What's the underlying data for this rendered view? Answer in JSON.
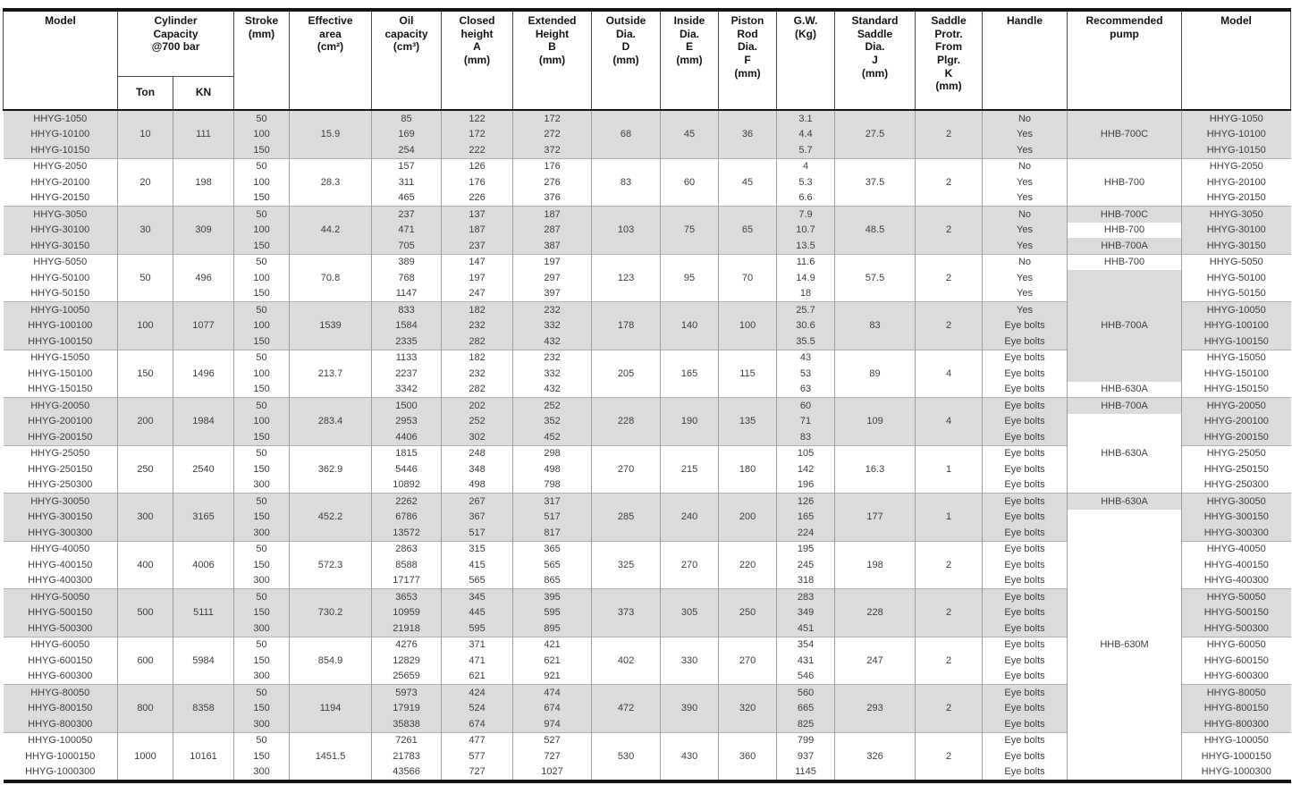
{
  "table": {
    "header": {
      "model": "Model",
      "capacity": "Cylinder\nCapacity\n@700 bar",
      "ton": "Ton",
      "kn": "KN",
      "stroke": "Stroke\n(mm)",
      "area": "Effective\narea\n(cm²)",
      "oil": "Oil\ncapacity\n(cm³)",
      "closed": "Closed\nheight\nA\n(mm)",
      "extended": "Extended\nHeight\nB\n(mm)",
      "outside": "Outside\nDia.\nD\n(mm)",
      "inside": "Inside\nDia.\nE\n(mm)",
      "rod": "Piston\nRod\nDia.\nF\n(mm)",
      "gw": "G.W.\n(Kg)",
      "saddle": "Standard\nSaddle\nDia.\nJ\n(mm)",
      "protr": "Saddle\nProtr.\nFrom\nPlgr.\nK\n(mm)",
      "handle": "Handle",
      "pump": "Recommended\npump",
      "model2": "Model"
    },
    "colors": {
      "shade": "#dbdbdb",
      "white": "#ffffff"
    },
    "groups": [
      {
        "ton": "10",
        "kn": "111",
        "area": "15.9",
        "outside": "68",
        "inside": "45",
        "rod": "36",
        "saddle": "27.5",
        "protr": "2",
        "bg": "shade",
        "rows": [
          {
            "model": "HHYG-1050",
            "stroke": "50",
            "oil": "85",
            "closed": "122",
            "extended": "172",
            "gw": "3.1",
            "handle": "No"
          },
          {
            "model": "HHYG-10100",
            "stroke": "100",
            "oil": "169",
            "closed": "172",
            "extended": "272",
            "gw": "4.4",
            "handle": "Yes"
          },
          {
            "model": "HHYG-10150",
            "stroke": "150",
            "oil": "254",
            "closed": "222",
            "extended": "372",
            "gw": "5.7",
            "handle": "Yes"
          }
        ]
      },
      {
        "ton": "20",
        "kn": "198",
        "area": "28.3",
        "outside": "83",
        "inside": "60",
        "rod": "45",
        "saddle": "37.5",
        "protr": "2",
        "bg": "white",
        "rows": [
          {
            "model": "HHYG-2050",
            "stroke": "50",
            "oil": "157",
            "closed": "126",
            "extended": "176",
            "gw": "4",
            "handle": "No"
          },
          {
            "model": "HHYG-20100",
            "stroke": "100",
            "oil": "311",
            "closed": "176",
            "extended": "276",
            "gw": "5.3",
            "handle": "Yes"
          },
          {
            "model": "HHYG-20150",
            "stroke": "150",
            "oil": "465",
            "closed": "226",
            "extended": "376",
            "gw": "6.6",
            "handle": "Yes"
          }
        ]
      },
      {
        "ton": "30",
        "kn": "309",
        "area": "44.2",
        "outside": "103",
        "inside": "75",
        "rod": "65",
        "saddle": "48.5",
        "protr": "2",
        "bg": "shade",
        "rows": [
          {
            "model": "HHYG-3050",
            "stroke": "50",
            "oil": "237",
            "closed": "137",
            "extended": "187",
            "gw": "7.9",
            "handle": "No"
          },
          {
            "model": "HHYG-30100",
            "stroke": "100",
            "oil": "471",
            "closed": "187",
            "extended": "287",
            "gw": "10.7",
            "handle": "Yes"
          },
          {
            "model": "HHYG-30150",
            "stroke": "150",
            "oil": "705",
            "closed": "237",
            "extended": "387",
            "gw": "13.5",
            "handle": "Yes"
          }
        ]
      },
      {
        "ton": "50",
        "kn": "496",
        "area": "70.8",
        "outside": "123",
        "inside": "95",
        "rod": "70",
        "saddle": "57.5",
        "protr": "2",
        "bg": "white",
        "rows": [
          {
            "model": "HHYG-5050",
            "stroke": "50",
            "oil": "389",
            "closed": "147",
            "extended": "197",
            "gw": "11.6",
            "handle": "No"
          },
          {
            "model": "HHYG-50100",
            "stroke": "100",
            "oil": "768",
            "closed": "197",
            "extended": "297",
            "gw": "14.9",
            "handle": "Yes"
          },
          {
            "model": "HHYG-50150",
            "stroke": "150",
            "oil": "1147",
            "closed": "247",
            "extended": "397",
            "gw": "18",
            "handle": "Yes"
          }
        ]
      },
      {
        "ton": "100",
        "kn": "1077",
        "area": "1539",
        "outside": "178",
        "inside": "140",
        "rod": "100",
        "saddle": "83",
        "protr": "2",
        "bg": "shade",
        "rows": [
          {
            "model": "HHYG-10050",
            "stroke": "50",
            "oil": "833",
            "closed": "182",
            "extended": "232",
            "gw": "25.7",
            "handle": "Yes"
          },
          {
            "model": "HHYG-100100",
            "stroke": "100",
            "oil": "1584",
            "closed": "232",
            "extended": "332",
            "gw": "30.6",
            "handle": "Eye bolts"
          },
          {
            "model": "HHYG-100150",
            "stroke": "150",
            "oil": "2335",
            "closed": "282",
            "extended": "432",
            "gw": "35.5",
            "handle": "Eye bolts"
          }
        ]
      },
      {
        "ton": "150",
        "kn": "1496",
        "area": "213.7",
        "outside": "205",
        "inside": "165",
        "rod": "115",
        "saddle": "89",
        "protr": "4",
        "bg": "white",
        "rows": [
          {
            "model": "HHYG-15050",
            "stroke": "50",
            "oil": "1133",
            "closed": "182",
            "extended": "232",
            "gw": "43",
            "handle": "Eye bolts"
          },
          {
            "model": "HHYG-150100",
            "stroke": "100",
            "oil": "2237",
            "closed": "232",
            "extended": "332",
            "gw": "53",
            "handle": "Eye bolts"
          },
          {
            "model": "HHYG-150150",
            "stroke": "150",
            "oil": "3342",
            "closed": "282",
            "extended": "432",
            "gw": "63",
            "handle": "Eye bolts"
          }
        ]
      },
      {
        "ton": "200",
        "kn": "1984",
        "area": "283.4",
        "outside": "228",
        "inside": "190",
        "rod": "135",
        "saddle": "109",
        "protr": "4",
        "bg": "shade",
        "rows": [
          {
            "model": "HHYG-20050",
            "stroke": "50",
            "oil": "1500",
            "closed": "202",
            "extended": "252",
            "gw": "60",
            "handle": "Eye bolts"
          },
          {
            "model": "HHYG-200100",
            "stroke": "100",
            "oil": "2953",
            "closed": "252",
            "extended": "352",
            "gw": "71",
            "handle": "Eye bolts"
          },
          {
            "model": "HHYG-200150",
            "stroke": "150",
            "oil": "4406",
            "closed": "302",
            "extended": "452",
            "gw": "83",
            "handle": "Eye bolts"
          }
        ]
      },
      {
        "ton": "250",
        "kn": "2540",
        "area": "362.9",
        "outside": "270",
        "inside": "215",
        "rod": "180",
        "saddle": "16.3",
        "protr": "1",
        "bg": "white",
        "rows": [
          {
            "model": "HHYG-25050",
            "stroke": "50",
            "oil": "1815",
            "closed": "248",
            "extended": "298",
            "gw": "105",
            "handle": "Eye bolts"
          },
          {
            "model": "HHYG-250150",
            "stroke": "150",
            "oil": "5446",
            "closed": "348",
            "extended": "498",
            "gw": "142",
            "handle": "Eye bolts"
          },
          {
            "model": "HHYG-250300",
            "stroke": "300",
            "oil": "10892",
            "closed": "498",
            "extended": "798",
            "gw": "196",
            "handle": "Eye bolts"
          }
        ]
      },
      {
        "ton": "300",
        "kn": "3165",
        "area": "452.2",
        "outside": "285",
        "inside": "240",
        "rod": "200",
        "saddle": "177",
        "protr": "1",
        "bg": "shade",
        "rows": [
          {
            "model": "HHYG-30050",
            "stroke": "50",
            "oil": "2262",
            "closed": "267",
            "extended": "317",
            "gw": "126",
            "handle": "Eye bolts"
          },
          {
            "model": "HHYG-300150",
            "stroke": "150",
            "oil": "6786",
            "closed": "367",
            "extended": "517",
            "gw": "165",
            "handle": "Eye bolts"
          },
          {
            "model": "HHYG-300300",
            "stroke": "300",
            "oil": "13572",
            "closed": "517",
            "extended": "817",
            "gw": "224",
            "handle": "Eye bolts"
          }
        ]
      },
      {
        "ton": "400",
        "kn": "4006",
        "area": "572.3",
        "outside": "325",
        "inside": "270",
        "rod": "220",
        "saddle": "198",
        "protr": "2",
        "bg": "white",
        "rows": [
          {
            "model": "HHYG-40050",
            "stroke": "50",
            "oil": "2863",
            "closed": "315",
            "extended": "365",
            "gw": "195",
            "handle": "Eye bolts"
          },
          {
            "model": "HHYG-400150",
            "stroke": "150",
            "oil": "8588",
            "closed": "415",
            "extended": "565",
            "gw": "245",
            "handle": "Eye bolts"
          },
          {
            "model": "HHYG-400300",
            "stroke": "300",
            "oil": "17177",
            "closed": "565",
            "extended": "865",
            "gw": "318",
            "handle": "Eye bolts"
          }
        ]
      },
      {
        "ton": "500",
        "kn": "5111",
        "area": "730.2",
        "outside": "373",
        "inside": "305",
        "rod": "250",
        "saddle": "228",
        "protr": "2",
        "bg": "shade",
        "rows": [
          {
            "model": "HHYG-50050",
            "stroke": "50",
            "oil": "3653",
            "closed": "345",
            "extended": "395",
            "gw": "283",
            "handle": "Eye bolts"
          },
          {
            "model": "HHYG-500150",
            "stroke": "150",
            "oil": "10959",
            "closed": "445",
            "extended": "595",
            "gw": "349",
            "handle": "Eye bolts"
          },
          {
            "model": "HHYG-500300",
            "stroke": "300",
            "oil": "21918",
            "closed": "595",
            "extended": "895",
            "gw": "451",
            "handle": "Eye bolts"
          }
        ]
      },
      {
        "ton": "600",
        "kn": "5984",
        "area": "854.9",
        "outside": "402",
        "inside": "330",
        "rod": "270",
        "saddle": "247",
        "protr": "2",
        "bg": "white",
        "rows": [
          {
            "model": "HHYG-60050",
            "stroke": "50",
            "oil": "4276",
            "closed": "371",
            "extended": "421",
            "gw": "354",
            "handle": "Eye bolts"
          },
          {
            "model": "HHYG-600150",
            "stroke": "150",
            "oil": "12829",
            "closed": "471",
            "extended": "621",
            "gw": "431",
            "handle": "Eye bolts"
          },
          {
            "model": "HHYG-600300",
            "stroke": "300",
            "oil": "25659",
            "closed": "621",
            "extended": "921",
            "gw": "546",
            "handle": "Eye bolts"
          }
        ]
      },
      {
        "ton": "800",
        "kn": "8358",
        "area": "1194",
        "outside": "472",
        "inside": "390",
        "rod": "320",
        "saddle": "293",
        "protr": "2",
        "bg": "shade",
        "rows": [
          {
            "model": "HHYG-80050",
            "stroke": "50",
            "oil": "5973",
            "closed": "424",
            "extended": "474",
            "gw": "560",
            "handle": "Eye bolts"
          },
          {
            "model": "HHYG-800150",
            "stroke": "150",
            "oil": "17919",
            "closed": "524",
            "extended": "674",
            "gw": "665",
            "handle": "Eye bolts"
          },
          {
            "model": "HHYG-800300",
            "stroke": "300",
            "oil": "35838",
            "closed": "674",
            "extended": "974",
            "gw": "825",
            "handle": "Eye bolts"
          }
        ]
      },
      {
        "ton": "1000",
        "kn": "10161",
        "area": "1451.5",
        "outside": "530",
        "inside": "430",
        "rod": "360",
        "saddle": "326",
        "protr": "2",
        "bg": "white",
        "rows": [
          {
            "model": "HHYG-100050",
            "stroke": "50",
            "oil": "7261",
            "closed": "477",
            "extended": "527",
            "gw": "799",
            "handle": "Eye bolts"
          },
          {
            "model": "HHYG-1000150",
            "stroke": "150",
            "oil": "21783",
            "closed": "577",
            "extended": "727",
            "gw": "937",
            "handle": "Eye bolts"
          },
          {
            "model": "HHYG-1000300",
            "stroke": "300",
            "oil": "43566",
            "closed": "727",
            "extended": "1027",
            "gw": "1145",
            "handle": "Eye bolts"
          }
        ]
      }
    ],
    "pump_cells": [
      {
        "start": 0,
        "span": 3,
        "label": "HHB-700C",
        "bg": "shade"
      },
      {
        "start": 3,
        "span": 3,
        "label": "HHB-700",
        "bg": "white"
      },
      {
        "start": 6,
        "span": 1,
        "label": "HHB-700C",
        "bg": "shade"
      },
      {
        "start": 7,
        "span": 1,
        "label": "HHB-700",
        "bg": "white"
      },
      {
        "start": 8,
        "span": 1,
        "label": "HHB-700A",
        "bg": "shade"
      },
      {
        "start": 9,
        "span": 1,
        "label": "HHB-700",
        "bg": "white"
      },
      {
        "start": 10,
        "span": 7,
        "label": "HHB-700A",
        "bg": "shade"
      },
      {
        "start": 17,
        "span": 1,
        "label": "HHB-630A",
        "bg": "white"
      },
      {
        "start": 18,
        "span": 1,
        "label": "HHB-700A",
        "bg": "shade"
      },
      {
        "start": 19,
        "span": 5,
        "label": "HHB-630A",
        "bg": "white"
      },
      {
        "start": 24,
        "span": 1,
        "label": "HHB-630A",
        "bg": "shade"
      },
      {
        "start": 25,
        "span": 17,
        "label": "HHB-630M",
        "bg": "white"
      }
    ]
  }
}
